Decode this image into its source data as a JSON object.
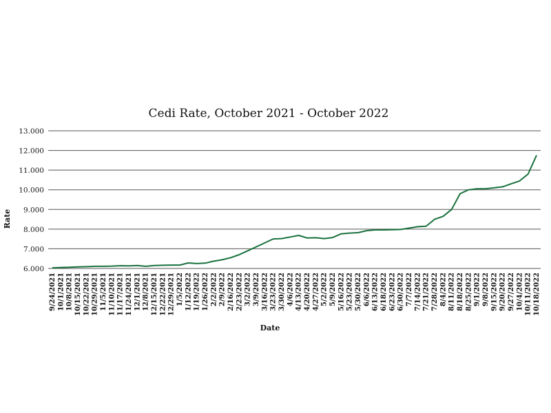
{
  "chart_data": {
    "type": "line",
    "title": "Cedi Rate, October 2021 - October 2022",
    "xlabel": "Date",
    "ylabel": "Rate",
    "ylim": [
      6,
      13
    ],
    "yticks": [
      "6.000",
      "7.000",
      "8.000",
      "9.000",
      "10.000",
      "11.000",
      "12.000",
      "13.000"
    ],
    "grid": true,
    "legend": "none",
    "color": "#17703b",
    "xticks": [
      "9/24/2021",
      "10/1/2021",
      "10/8/2021",
      "10/15/2021",
      "10/22/2021",
      "10/29/2021",
      "11/5/2021",
      "11/10/2021",
      "11/17/2021",
      "11/24/2021",
      "12/1/2021",
      "12/8/2021",
      "12/15/2021",
      "12/22/2021",
      "12/29/2021",
      "1/5/2022",
      "1/12/2022",
      "1/19/2022",
      "1/26/2022",
      "2/2/2022",
      "2/9/2022",
      "2/16/2022",
      "2/23/2022",
      "3/2/2022",
      "3/9/2022",
      "3/16/2022",
      "3/23/2022",
      "3/30/2022",
      "4/6/2022",
      "4/13/2022",
      "4/20/2022",
      "4/27/2022",
      "5/2/2022",
      "5/9/2022",
      "5/16/2022",
      "5/23/2022",
      "5/30/2022",
      "6/6/2022",
      "6/13/2022",
      "6/18/2022",
      "6/23/2022",
      "6/30/2022",
      "7/7/2022",
      "7/14/2022",
      "7/21/2022",
      "7/28/2022",
      "8/4/2022",
      "8/11/2022",
      "8/18/2022",
      "8/25/2022",
      "9/1/2022",
      "9/8/2022",
      "9/15/2022",
      "9/20/2022",
      "9/27/2022",
      "10/4/2022",
      "10/11/2022",
      "10/18/2022"
    ],
    "series": [
      {
        "values": [
          6.03,
          6.05,
          6.06,
          6.08,
          6.09,
          6.11,
          6.11,
          6.12,
          6.14,
          6.13,
          6.15,
          6.11,
          6.15,
          6.16,
          6.17,
          6.17,
          6.28,
          6.25,
          6.27,
          6.37,
          6.44,
          6.55,
          6.7,
          6.9,
          7.1,
          7.3,
          7.5,
          7.52,
          7.6,
          7.68,
          7.55,
          7.56,
          7.52,
          7.57,
          7.76,
          7.8,
          7.82,
          7.92,
          7.96,
          7.96,
          7.97,
          7.98,
          8.05,
          8.12,
          8.15,
          8.5,
          8.65,
          9.0,
          9.8,
          10.0,
          10.05,
          10.05,
          10.1,
          10.15,
          10.3,
          10.45,
          10.8,
          11.75
        ]
      }
    ]
  }
}
